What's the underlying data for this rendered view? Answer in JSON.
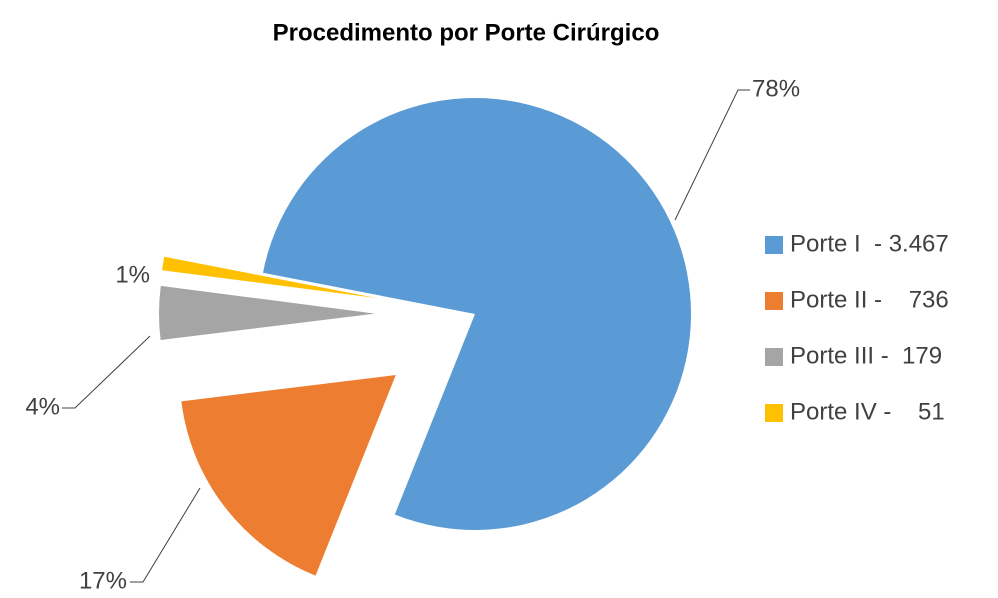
{
  "chart_data": {
    "type": "pie",
    "title": "Procedimento por Porte Cirúrgico",
    "categories": [
      "Porte I  - 3.467",
      "Porte II -    736",
      "Porte III -  179",
      "Porte IV -    51"
    ],
    "values": [
      78,
      17,
      4,
      1
    ],
    "value_labels": [
      "78%",
      "17%",
      "4%",
      "1%"
    ],
    "colors": [
      "#5B9BD5",
      "#ED7D31",
      "#A5A5A5",
      "#FFC000"
    ],
    "legend": "right"
  }
}
